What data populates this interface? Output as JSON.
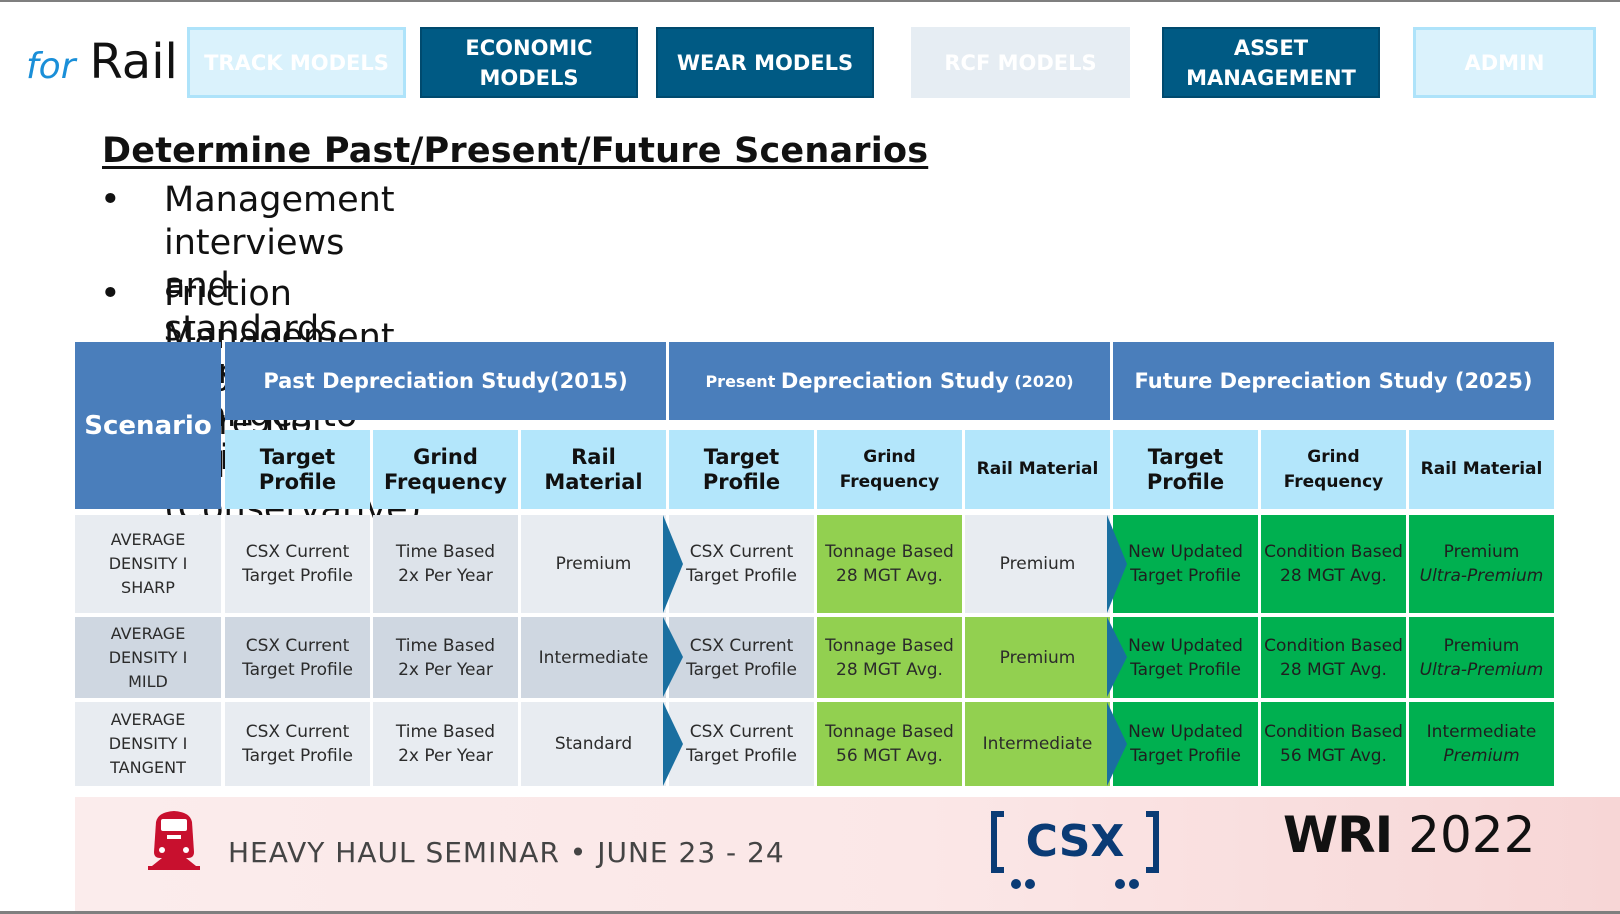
{
  "logo": {
    "for": "for",
    "rail": "Rail"
  },
  "nav": [
    {
      "label": "TRACK MODELS",
      "style": "light"
    },
    {
      "label": "ECONOMIC\nMODELS",
      "style": "dark"
    },
    {
      "label": "WEAR MODELS",
      "style": "dark"
    },
    {
      "label": "RCF MODELS",
      "style": "pale"
    },
    {
      "label": "ASSET\nMANAGEMENT",
      "style": "dark"
    },
    {
      "label": "ADMIN",
      "style": "light"
    }
  ],
  "heading": "Determine Past/Present/Future Scenarios",
  "bullets": [
    "Management interviews and standards identified changes to\nmaintenance",
    "Friction Management Improvements Were Not Included (Conservative)"
  ],
  "bullet_char": "•",
  "table": {
    "scenario_header": "Scenario",
    "studies": [
      {
        "prefix": "",
        "label": "Past Depreciation Study(2015)",
        "suffix": ""
      },
      {
        "prefix": "Present ",
        "label": "Depreciation Study",
        "suffix": " (2020)"
      },
      {
        "prefix": "",
        "label": "Future Depreciation Study (2025)",
        "suffix": ""
      }
    ],
    "sub_headers": [
      "Target\nProfile",
      "Grind\nFrequency",
      "Rail\nMaterial",
      "Target\nProfile",
      "Grind\nFrequency",
      "Rail Material",
      "Target\nProfile",
      "Grind\nFrequency",
      "Rail Material"
    ],
    "rows": [
      {
        "scenario": "AVERAGE\nDENSITY I\nSHARP",
        "cells": [
          "CSX Current\nTarget Profile",
          "Time Based\n2x Per Year",
          "Premium",
          "CSX Current\nTarget Profile",
          "Tonnage Based\n28 MGT Avg.",
          "Premium",
          "New Updated\nTarget Profile",
          "Condition Based\n28 MGT Avg."
        ],
        "future_material": {
          "main": "Premium",
          "alt": "Ultra-Premium"
        }
      },
      {
        "scenario": "AVERAGE\nDENSITY I\nMILD",
        "cells": [
          "CSX Current\nTarget Profile",
          "Time Based\n2x Per Year",
          "Intermediate",
          "CSX Current\nTarget Profile",
          "Tonnage Based\n28 MGT Avg.",
          "Premium",
          "New Updated\nTarget Profile",
          "Condition Based\n28 MGT Avg."
        ],
        "future_material": {
          "main": "Premium",
          "alt": "Ultra-Premium"
        }
      },
      {
        "scenario": "AVERAGE\nDENSITY I\nTANGENT",
        "cells": [
          "CSX Current\nTarget Profile",
          "Time Based\n2x Per Year",
          "Standard",
          "CSX Current\nTarget Profile",
          "Tonnage Based\n56 MGT Avg.",
          "Intermediate",
          "New Updated\nTarget Profile",
          "Condition Based\n56 MGT Avg."
        ],
        "future_material": {
          "main": "Intermediate",
          "alt": "Premium"
        }
      }
    ]
  },
  "footer": {
    "seminar": "HEAVY HAUL SEMINAR • JUNE 23 - 24",
    "csx_logo_text": "CSX",
    "wri_bold": "WRI",
    "wri_year": "2022"
  },
  "colors": {
    "nav_dark": "#005a84",
    "header_blue": "#4a7ebb",
    "subheader_light": "#b3e6fb",
    "light_green": "#92d050",
    "green": "#00b050",
    "arrow": "#1a6fa0",
    "csx_blue": "#0a3b75",
    "train_red": "#c8102e"
  },
  "icons": [
    "train-icon",
    "csx-logo",
    "bullet-dot",
    "arrow-icon"
  ]
}
